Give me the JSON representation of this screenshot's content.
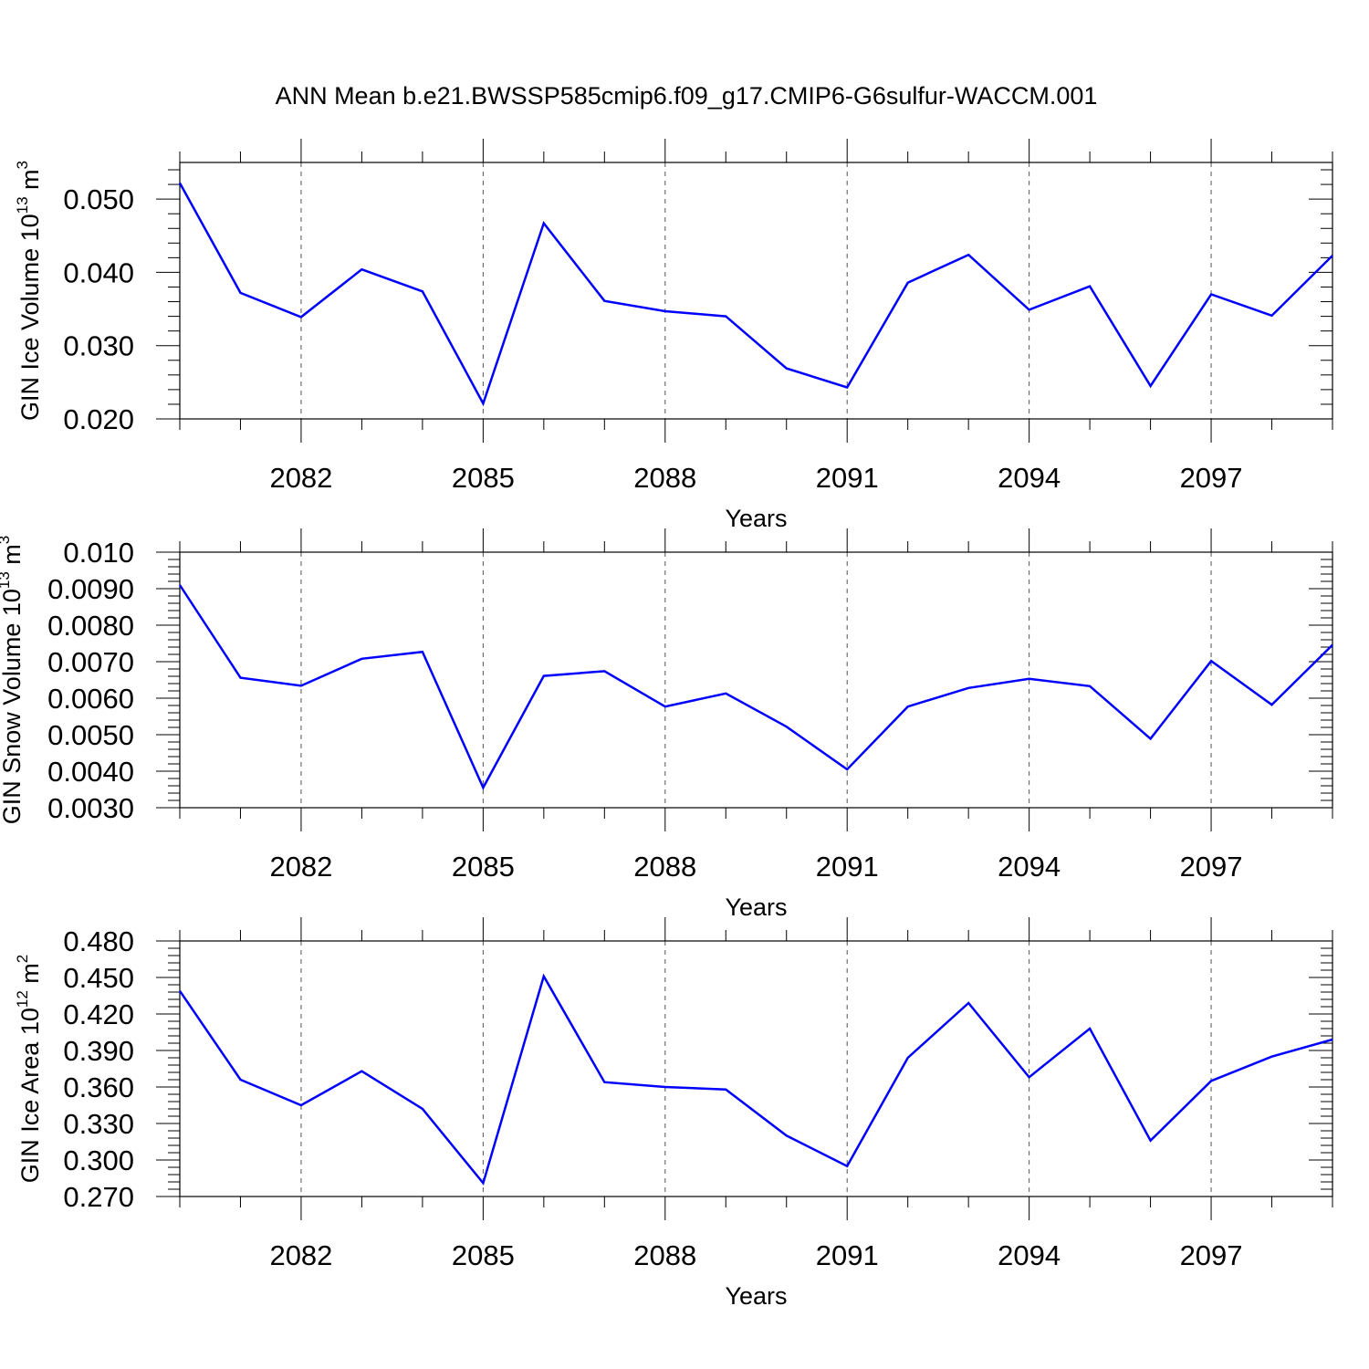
{
  "title": "ANN Mean b.e21.BWSSP585cmip6.f09_g17.CMIP6-G6sulfur-WACCM.001",
  "colors": {
    "series": "#0000ff",
    "axis": "#000000",
    "grid": "#555555"
  },
  "chart_data": [
    {
      "type": "line",
      "ylabel_main": "GIN Ice Volume 10",
      "ylabel_exp": "13",
      "ylabel_unit": " m",
      "ylabel_unit_exp": "3",
      "xlabel": "",
      "x": [
        2080,
        2081,
        2082,
        2083,
        2084,
        2085,
        2086,
        2087,
        2088,
        2089,
        2090,
        2091,
        2092,
        2093,
        2094,
        2095,
        2096,
        2097,
        2098,
        2099
      ],
      "values": [
        0.0522,
        0.0372,
        0.0339,
        0.0404,
        0.0374,
        0.0221,
        0.0467,
        0.0361,
        0.0347,
        0.034,
        0.0269,
        0.0243,
        0.0386,
        0.0424,
        0.0349,
        0.0381,
        0.0245,
        0.037,
        0.0341,
        0.0423
      ],
      "xlim": [
        2080,
        2099
      ],
      "ylim": [
        0.02,
        0.055
      ],
      "xticks": [
        "2082",
        "2085",
        "2088",
        "2091",
        "2094",
        "2097"
      ],
      "yticks": [
        "0.020",
        "0.030",
        "0.040",
        "0.050"
      ],
      "grid": "vertical dashed at labeled years"
    },
    {
      "type": "line",
      "ylabel_main": "GIN Snow Volume 10",
      "ylabel_exp": "13",
      "ylabel_unit": " m",
      "ylabel_unit_exp": "3",
      "xlabel": "Years",
      "x": [
        2080,
        2081,
        2082,
        2083,
        2084,
        2085,
        2086,
        2087,
        2088,
        2089,
        2090,
        2091,
        2092,
        2093,
        2094,
        2095,
        2096,
        2097,
        2098,
        2099
      ],
      "values": [
        0.0091,
        0.00656,
        0.00634,
        0.00708,
        0.00727,
        0.00355,
        0.00661,
        0.00674,
        0.00577,
        0.00613,
        0.00522,
        0.00405,
        0.00577,
        0.00628,
        0.00653,
        0.00633,
        0.00489,
        0.00702,
        0.00582,
        0.00746
      ],
      "xlim": [
        2080,
        2099
      ],
      "ylim": [
        0.003,
        0.01
      ],
      "xticks": [
        "2082",
        "2085",
        "2088",
        "2091",
        "2094",
        "2097"
      ],
      "yticks": [
        "0.0030",
        "0.0040",
        "0.0050",
        "0.0060",
        "0.0070",
        "0.0080",
        "0.0090",
        "0.010"
      ],
      "grid": "vertical dashed at labeled years"
    },
    {
      "type": "line",
      "ylabel_main": "GIN Ice Area 10",
      "ylabel_exp": "12",
      "ylabel_unit": " m",
      "ylabel_unit_exp": "2",
      "xlabel": "Years",
      "x": [
        2080,
        2081,
        2082,
        2083,
        2084,
        2085,
        2086,
        2087,
        2088,
        2089,
        2090,
        2091,
        2092,
        2093,
        2094,
        2095,
        2096,
        2097,
        2098,
        2099
      ],
      "values": [
        0.439,
        0.366,
        0.345,
        0.373,
        0.342,
        0.281,
        0.451,
        0.364,
        0.36,
        0.358,
        0.32,
        0.295,
        0.384,
        0.429,
        0.368,
        0.408,
        0.316,
        0.365,
        0.385,
        0.399
      ],
      "xlim": [
        2080,
        2099
      ],
      "ylim": [
        0.27,
        0.48
      ],
      "xticks": [
        "2082",
        "2085",
        "2088",
        "2091",
        "2094",
        "2097"
      ],
      "yticks": [
        "0.270",
        "0.300",
        "0.330",
        "0.360",
        "0.390",
        "0.420",
        "0.450",
        "0.480"
      ],
      "grid": "vertical dashed at labeled years"
    }
  ]
}
